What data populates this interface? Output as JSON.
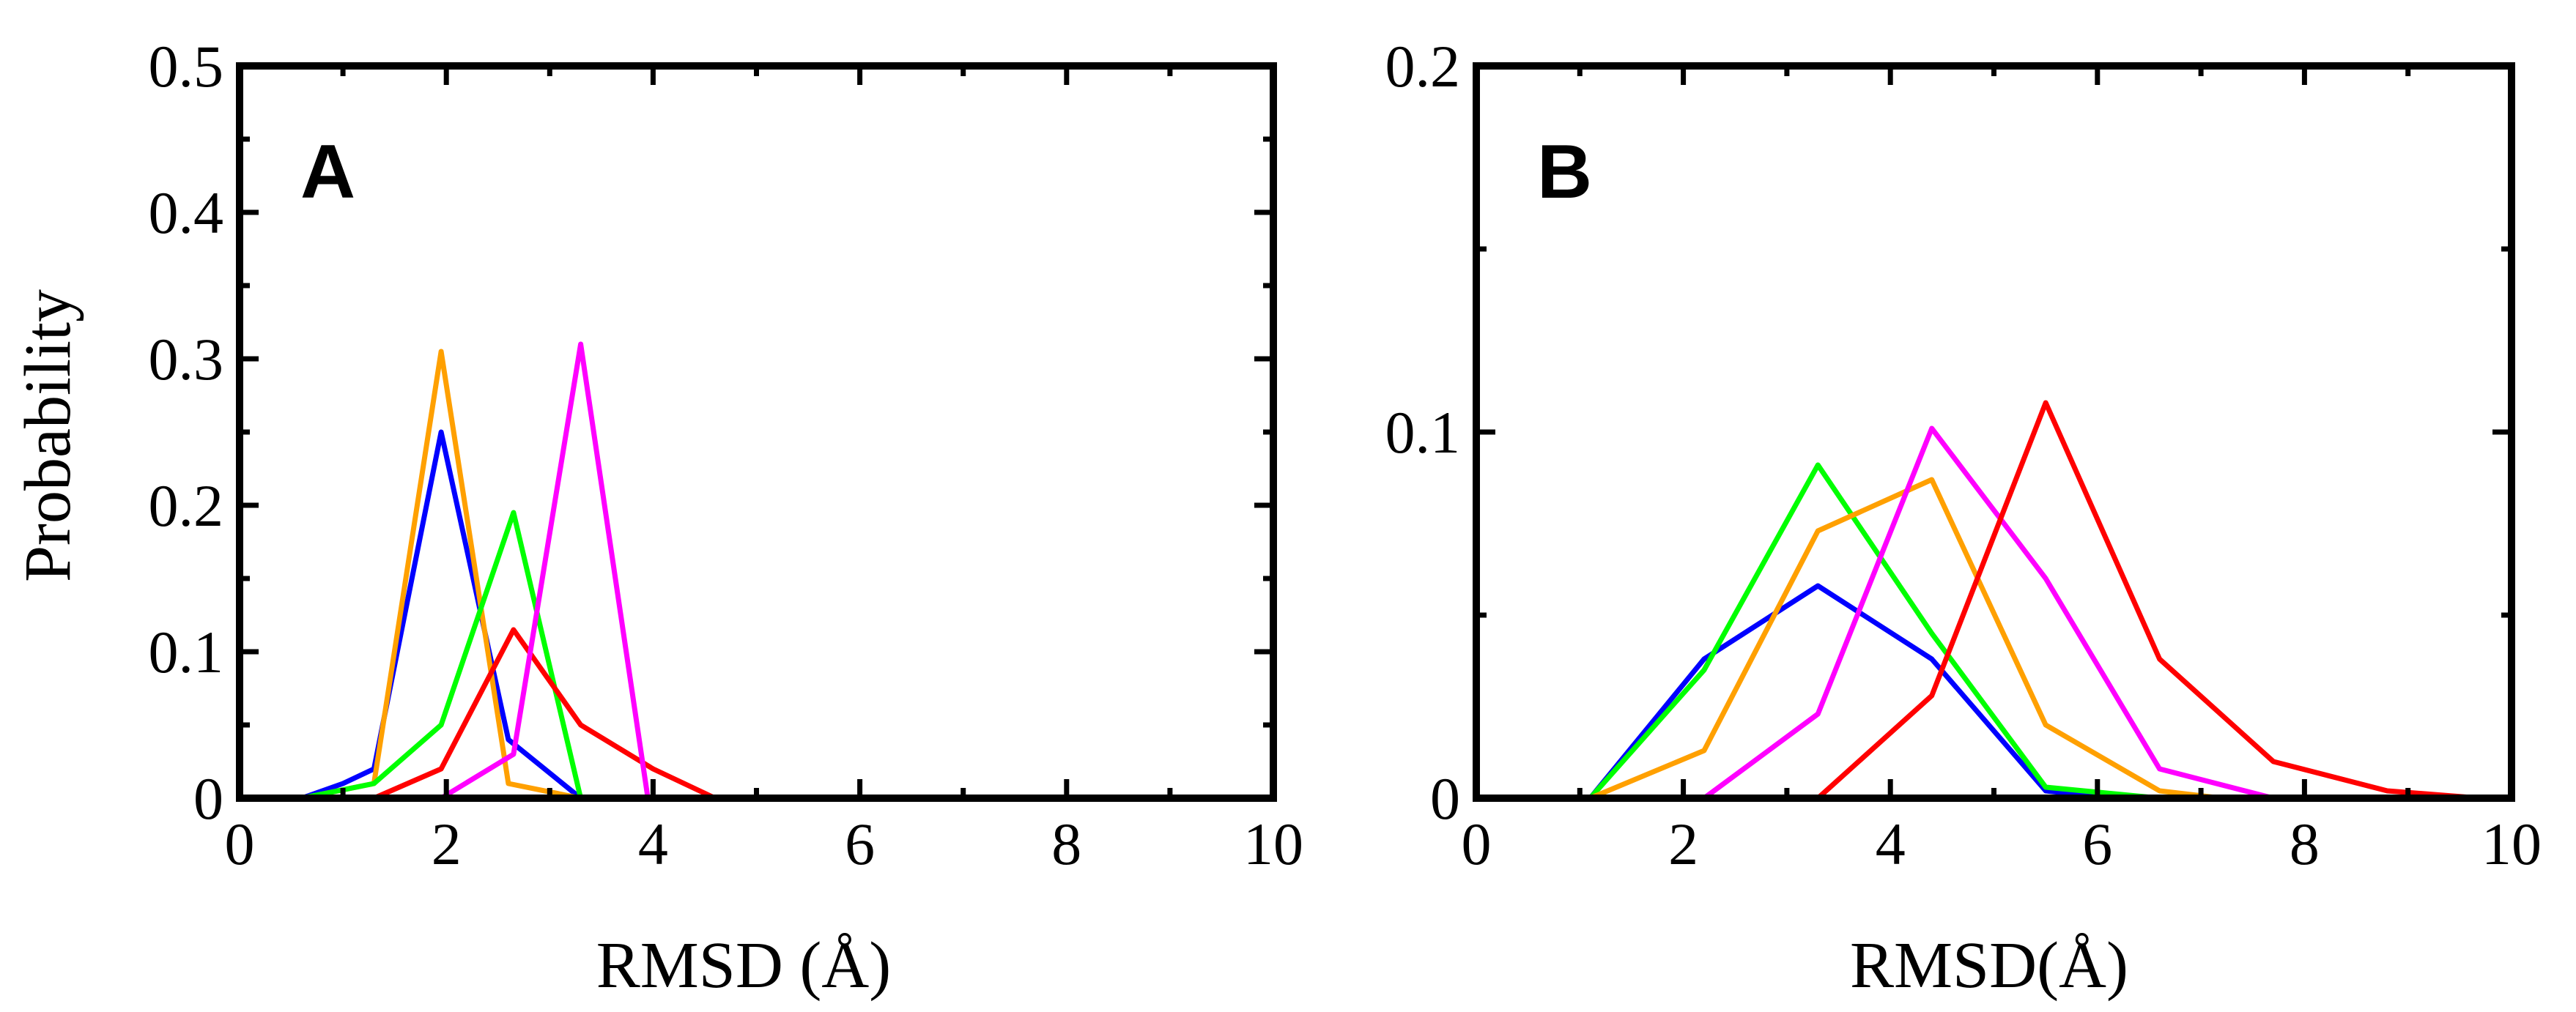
{
  "chart_data": [
    {
      "panel": "A",
      "type": "line",
      "xlabel": "RMSD (Å)",
      "ylabel": "Probability",
      "xlim": [
        0,
        10
      ],
      "ylim": [
        0,
        0.5
      ],
      "xticks": [
        "0",
        "2",
        "4",
        "6",
        "8",
        "10"
      ],
      "yticks": [
        "0",
        "0.1",
        "0.2",
        "0.3",
        "0.4",
        "0.5"
      ],
      "grid": false,
      "series": [
        {
          "color": "#0000ff",
          "x": [
            0.3,
            0.6,
            1.0,
            1.3,
            1.95,
            2.6,
            3.3
          ],
          "y": [
            0,
            0,
            0.01,
            0.02,
            0.25,
            0.04,
            0
          ]
        },
        {
          "color": "#ffa000",
          "x": [
            0.6,
            1.3,
            1.95,
            2.6,
            3.3
          ],
          "y": [
            0,
            0.01,
            0.305,
            0.01,
            0
          ]
        },
        {
          "color": "#00ff00",
          "x": [
            0.6,
            1.3,
            1.95,
            2.65,
            3.3
          ],
          "y": [
            0,
            0.01,
            0.05,
            0.195,
            0
          ]
        },
        {
          "color": "#ff0000",
          "x": [
            1.3,
            1.95,
            2.65,
            3.3,
            4.0,
            4.6
          ],
          "y": [
            0,
            0.02,
            0.115,
            0.05,
            0.02,
            0
          ]
        },
        {
          "color": "#ff00ff",
          "x": [
            1.95,
            2.65,
            3.3,
            3.95
          ],
          "y": [
            0,
            0.03,
            0.31,
            0
          ]
        }
      ]
    },
    {
      "panel": "B",
      "type": "line",
      "xlabel": "RMSD(Å)",
      "ylabel": "",
      "xlim": [
        0,
        10
      ],
      "ylim": [
        0,
        0.2
      ],
      "xticks": [
        "0",
        "2",
        "4",
        "6",
        "8",
        "10"
      ],
      "yticks": [
        "0",
        "0.1",
        "0.2"
      ],
      "grid": false,
      "series": [
        {
          "color": "#0000ff",
          "x": [
            0.5,
            1.1,
            2.2,
            3.3,
            4.4,
            5.5,
            6.2
          ],
          "y": [
            0,
            0,
            0.038,
            0.058,
            0.038,
            0.002,
            0
          ]
        },
        {
          "color": "#00ff00",
          "x": [
            0.5,
            1.1,
            2.2,
            3.3,
            4.4,
            5.5,
            6.6
          ],
          "y": [
            0,
            0,
            0.035,
            0.091,
            0.045,
            0.003,
            0
          ]
        },
        {
          "color": "#ffa000",
          "x": [
            1.1,
            2.2,
            3.3,
            4.4,
            5.5,
            6.6,
            7.2
          ],
          "y": [
            0,
            0.013,
            0.073,
            0.087,
            0.02,
            0.002,
            0
          ]
        },
        {
          "color": "#ff00ff",
          "x": [
            1.6,
            2.2,
            3.3,
            4.4,
            5.5,
            6.6,
            7.7
          ],
          "y": [
            0,
            0,
            0.023,
            0.101,
            0.06,
            0.008,
            0
          ]
        },
        {
          "color": "#ff0000",
          "x": [
            2.7,
            3.3,
            4.4,
            5.5,
            6.6,
            7.7,
            8.8,
            9.7
          ],
          "y": [
            0,
            0,
            0.028,
            0.108,
            0.038,
            0.01,
            0.002,
            0
          ]
        }
      ]
    }
  ]
}
